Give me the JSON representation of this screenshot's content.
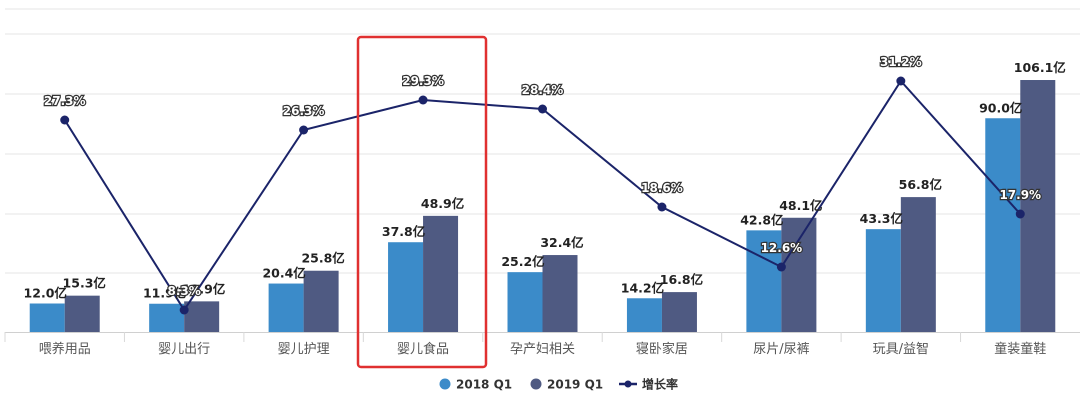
{
  "chart_data": {
    "type": "bar",
    "title": "",
    "xlabel": "",
    "ylabel": "",
    "categories": [
      "喂养用品",
      "婴儿出行",
      "婴儿护理",
      "婴儿食品",
      "孕产妇相关",
      "寝卧家居",
      "尿片/尿裤",
      "玩具/益智",
      "童装童鞋"
    ],
    "series": [
      {
        "name": "2018 Q1",
        "type": "bar",
        "color": "#3b8bc9",
        "values": [
          12.0,
          11.9,
          20.4,
          37.8,
          25.2,
          14.2,
          42.8,
          43.3,
          90.0
        ],
        "labels": [
          "12.0亿",
          "11.9亿",
          "20.4亿",
          "37.8亿",
          "25.2亿",
          "14.2亿",
          "42.8亿",
          "43.3亿",
          "90.0亿"
        ]
      },
      {
        "name": "2019 Q1",
        "type": "bar",
        "color": "#4f5a82",
        "values": [
          15.3,
          12.9,
          25.8,
          48.9,
          32.4,
          16.8,
          48.1,
          56.8,
          106.1
        ],
        "labels": [
          "15.3亿",
          "12.9亿",
          "25.8亿",
          "48.9亿",
          "32.4亿",
          "16.8亿",
          "48.1亿",
          "56.8亿",
          "106.1亿"
        ]
      },
      {
        "name": "增长率",
        "type": "line",
        "color": "#1b2469",
        "values": [
          27.3,
          8.3,
          26.3,
          29.3,
          28.4,
          18.6,
          12.6,
          31.2,
          17.9
        ],
        "labels": [
          "27.3%",
          "8.3%",
          "26.3%",
          "29.3%",
          "28.4%",
          "18.6%",
          "12.6%",
          "31.2%",
          "17.9%"
        ]
      }
    ],
    "units": {
      "bars": "亿",
      "line": "%"
    },
    "grid": true,
    "legend_position": "bottom",
    "highlight": {
      "category": "婴儿食品",
      "color": "#e03030"
    }
  },
  "legend": {
    "items": [
      {
        "label": "2018 Q1",
        "color": "#3b8bc9",
        "marker": "circle"
      },
      {
        "label": "2019 Q1",
        "color": "#4f5a82",
        "marker": "circle"
      },
      {
        "label": "增长率",
        "color": "#1b2469",
        "marker": "line-dot"
      }
    ]
  }
}
